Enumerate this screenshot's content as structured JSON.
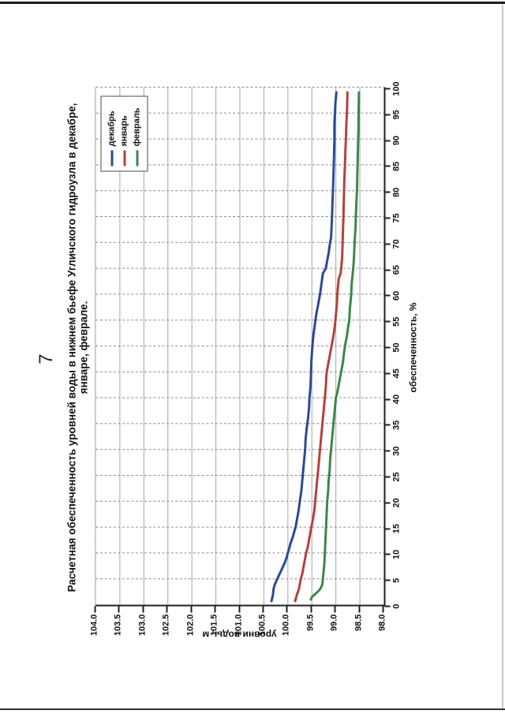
{
  "page": {
    "number": "7"
  },
  "chart": {
    "title_line1": "Расчетная обеспеченность уровней воды в нижнем бьефе Угличского гидроузла в декабре,",
    "title_line2": "январе, феврале.",
    "x_axis": {
      "label": "обеспеченность, %",
      "min": 0,
      "max": 100,
      "step": 5,
      "tick_labels": [
        "0",
        "5",
        "10",
        "15",
        "20",
        "25",
        "30",
        "35",
        "40",
        "45",
        "50",
        "55",
        "60",
        "65",
        "70",
        "75",
        "80",
        "85",
        "90",
        "95",
        "100"
      ]
    },
    "y_axis": {
      "label": "уровни воды, м",
      "min": 98.0,
      "max": 104.0,
      "step": 0.5,
      "tick_labels": [
        "104.0",
        "103.5",
        "103.0",
        "102.5",
        "102.0",
        "101.5",
        "101.0",
        "100.5",
        "100.0",
        "99.5",
        "99.0",
        "98.5",
        "98.0"
      ]
    },
    "legend": [
      {
        "label": "декабрь",
        "color": "#2a4a94"
      },
      {
        "label": "январь",
        "color": "#b5413c"
      },
      {
        "label": "февраль",
        "color": "#3e8648"
      }
    ]
  },
  "chart_data": {
    "type": "line",
    "title": "Расчетная обеспеченность уровней воды в нижнем бьефе Угличского гидроузла в декабре, январе, феврале.",
    "xlabel": "обеспеченность, %",
    "ylabel": "уровни воды, м",
    "xlim": [
      0,
      100
    ],
    "ylim": [
      98.0,
      104.0
    ],
    "x_tick_step": 5,
    "y_tick_step": 0.5,
    "grid": true,
    "grid_style": {
      "x_gridlines": "dashed",
      "y_gridlines": "solid"
    },
    "legend_position": "top-right-inside",
    "orientation_note": "landscape chart rotated 90 degrees counterclockwise on portrait page",
    "series": [
      {
        "name": "декабрь",
        "color": "#2a4a94",
        "points": [
          [
            0.7,
            100.34
          ],
          [
            2,
            100.31
          ],
          [
            3,
            100.3
          ],
          [
            4,
            100.27
          ],
          [
            5,
            100.22
          ],
          [
            6,
            100.17
          ],
          [
            7,
            100.12
          ],
          [
            8,
            100.07
          ],
          [
            9,
            100.03
          ],
          [
            10,
            100.0
          ],
          [
            11,
            99.97
          ],
          [
            12,
            99.94
          ],
          [
            13,
            99.9
          ],
          [
            14,
            99.87
          ],
          [
            15,
            99.84
          ],
          [
            16,
            99.82
          ],
          [
            17,
            99.8
          ],
          [
            18,
            99.78
          ],
          [
            20,
            99.75
          ],
          [
            22,
            99.72
          ],
          [
            24,
            99.7
          ],
          [
            26,
            99.68
          ],
          [
            28,
            99.66
          ],
          [
            30,
            99.64
          ],
          [
            32,
            99.63
          ],
          [
            34,
            99.61
          ],
          [
            36,
            99.58
          ],
          [
            38,
            99.56
          ],
          [
            40,
            99.55
          ],
          [
            42,
            99.53
          ],
          [
            44,
            99.52
          ],
          [
            47,
            99.51
          ],
          [
            50,
            99.49
          ],
          [
            52,
            99.47
          ],
          [
            54,
            99.44
          ],
          [
            56,
            99.41
          ],
          [
            58,
            99.37
          ],
          [
            60,
            99.33
          ],
          [
            62,
            99.3
          ],
          [
            64,
            99.27
          ],
          [
            65,
            99.21
          ],
          [
            66,
            99.19
          ],
          [
            67,
            99.17
          ],
          [
            68,
            99.15
          ],
          [
            70,
            99.12
          ],
          [
            71,
            99.1
          ],
          [
            73,
            99.09
          ],
          [
            75,
            99.08
          ],
          [
            78,
            99.07
          ],
          [
            80,
            99.06
          ],
          [
            83,
            99.05
          ],
          [
            86,
            99.04
          ],
          [
            90,
            99.03
          ],
          [
            93,
            99.03
          ],
          [
            95,
            99.02
          ],
          [
            97,
            99.01
          ],
          [
            99,
            98.99
          ]
        ]
      },
      {
        "name": "январь",
        "color": "#b5413c",
        "points": [
          [
            0.7,
            99.85
          ],
          [
            2,
            99.81
          ],
          [
            3,
            99.77
          ],
          [
            4,
            99.75
          ],
          [
            5,
            99.73
          ],
          [
            6,
            99.7
          ],
          [
            7,
            99.68
          ],
          [
            8,
            99.66
          ],
          [
            9,
            99.64
          ],
          [
            10,
            99.62
          ],
          [
            11,
            99.59
          ],
          [
            12,
            99.57
          ],
          [
            13,
            99.55
          ],
          [
            14,
            99.53
          ],
          [
            15,
            99.51
          ],
          [
            16,
            99.49
          ],
          [
            17,
            99.47
          ],
          [
            18,
            99.45
          ],
          [
            20,
            99.43
          ],
          [
            22,
            99.41
          ],
          [
            24,
            99.39
          ],
          [
            26,
            99.37
          ],
          [
            28,
            99.35
          ],
          [
            30,
            99.33
          ],
          [
            32,
            99.31
          ],
          [
            34,
            99.29
          ],
          [
            36,
            99.27
          ],
          [
            38,
            99.25
          ],
          [
            40,
            99.23
          ],
          [
            42,
            99.21
          ],
          [
            44,
            99.2
          ],
          [
            45,
            99.19
          ],
          [
            46,
            99.17
          ],
          [
            47,
            99.15
          ],
          [
            48,
            99.13
          ],
          [
            50,
            99.09
          ],
          [
            52,
            99.05
          ],
          [
            54,
            99.02
          ],
          [
            56,
            99.0
          ],
          [
            58,
            98.98
          ],
          [
            60,
            98.97
          ],
          [
            62,
            98.95
          ],
          [
            63,
            98.94
          ],
          [
            64,
            98.9
          ],
          [
            65,
            98.89
          ],
          [
            67,
            98.87
          ],
          [
            70,
            98.86
          ],
          [
            73,
            98.85
          ],
          [
            76,
            98.84
          ],
          [
            80,
            98.83
          ],
          [
            83,
            98.82
          ],
          [
            85,
            98.81
          ],
          [
            88,
            98.8
          ],
          [
            90,
            98.79
          ],
          [
            93,
            98.78
          ],
          [
            95,
            98.77
          ],
          [
            99,
            98.76
          ]
        ]
      },
      {
        "name": "февраль",
        "color": "#3e8648",
        "points": [
          [
            1,
            99.52
          ],
          [
            1.5,
            99.5
          ],
          [
            2,
            99.44
          ],
          [
            2.5,
            99.38
          ],
          [
            3,
            99.33
          ],
          [
            3.5,
            99.3
          ],
          [
            4,
            99.28
          ],
          [
            5,
            99.27
          ],
          [
            6,
            99.26
          ],
          [
            8,
            99.24
          ],
          [
            10,
            99.23
          ],
          [
            12,
            99.22
          ],
          [
            14,
            99.21
          ],
          [
            16,
            99.2
          ],
          [
            18,
            99.19
          ],
          [
            20,
            99.18
          ],
          [
            22,
            99.16
          ],
          [
            24,
            99.15
          ],
          [
            26,
            99.13
          ],
          [
            28,
            99.12
          ],
          [
            30,
            99.1
          ],
          [
            32,
            99.08
          ],
          [
            34,
            99.06
          ],
          [
            36,
            99.04
          ],
          [
            38,
            99.02
          ],
          [
            40,
            99.0
          ],
          [
            41,
            98.97
          ],
          [
            42,
            98.95
          ],
          [
            43,
            98.93
          ],
          [
            44,
            98.91
          ],
          [
            45,
            98.89
          ],
          [
            46,
            98.87
          ],
          [
            47,
            98.85
          ],
          [
            48,
            98.84
          ],
          [
            50,
            98.81
          ],
          [
            52,
            98.77
          ],
          [
            54,
            98.74
          ],
          [
            55,
            98.72
          ],
          [
            57,
            98.71
          ],
          [
            58,
            98.7
          ],
          [
            60,
            98.68
          ],
          [
            62,
            98.67
          ],
          [
            64,
            98.65
          ],
          [
            66,
            98.63
          ],
          [
            68,
            98.62
          ],
          [
            70,
            98.61
          ],
          [
            73,
            98.59
          ],
          [
            76,
            98.58
          ],
          [
            80,
            98.56
          ],
          [
            84,
            98.55
          ],
          [
            88,
            98.54
          ],
          [
            92,
            98.53
          ],
          [
            96,
            98.525
          ],
          [
            99,
            98.52
          ]
        ]
      }
    ]
  }
}
